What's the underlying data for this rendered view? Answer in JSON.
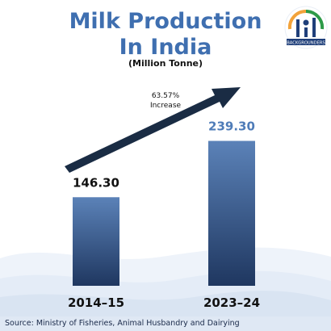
{
  "title_line1": "Milk Production",
  "title_line2": "In India",
  "subtitle": "(Million Tonne)",
  "logo_text": "BACKGROUNDERS",
  "source": "Source: Ministry of Fisheries, Animal Husbandry and Dairying",
  "annotation": {
    "percent": "63.57%",
    "text": "Increase"
  },
  "colors": {
    "title": "#3f6fb0",
    "bar_top": "#5b82b8",
    "bar_bottom": "#1f3760",
    "arrow": "#1a2c44",
    "value_highlight": "#4f7cb8",
    "saffron": "#f2a23a",
    "green": "#2e9a48"
  },
  "chart_data": {
    "type": "bar",
    "title": "Milk Production In India",
    "subtitle": "(Million Tonne)",
    "categories": [
      "2014-15",
      "2023-24"
    ],
    "series": [
      {
        "values": [
          146.3,
          239.3
        ]
      }
    ],
    "data_labels": [
      "146.30",
      "239.30"
    ],
    "tick_labels": [
      "2014–15",
      "2023–24"
    ],
    "ylim": [
      0,
      300
    ],
    "grid": false,
    "annotations": [
      {
        "text": "63.57% Increase",
        "style": "upward arrow from first bar to second bar"
      }
    ]
  }
}
